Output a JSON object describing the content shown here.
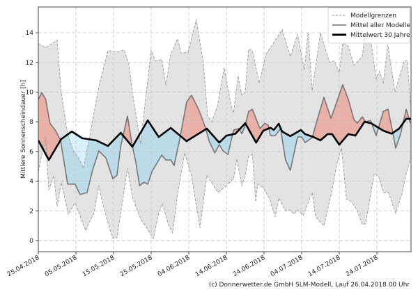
{
  "chart_data": {
    "type": "line",
    "title": "",
    "ylabel": "Mittlere Sonnenscheindauer [h]",
    "xlabel": "",
    "ylim": [
      -0.7,
      15.6
    ],
    "xlim_days": [
      0,
      99.3
    ],
    "grid": true,
    "legend_position": "top-right",
    "yticks": [
      0,
      2,
      4,
      6,
      8,
      10,
      12,
      14
    ],
    "xticks": [
      {
        "day": 0,
        "label": "25.04.2018"
      },
      {
        "day": 10,
        "label": "05.05.2018"
      },
      {
        "day": 20,
        "label": "15.05.2018"
      },
      {
        "day": 30,
        "label": "25.05.2018"
      },
      {
        "day": 40,
        "label": "04.06.2018"
      },
      {
        "day": 50,
        "label": "14.06.2018"
      },
      {
        "day": 60,
        "label": "24.06.2018"
      },
      {
        "day": 70,
        "label": "04.07.2018"
      },
      {
        "day": 80,
        "label": "14.07.2018"
      },
      {
        "day": 90,
        "label": "24.07.2018"
      }
    ],
    "legend": [
      {
        "label": "Modellgrenzen",
        "style": "dashed",
        "color": "#999999"
      },
      {
        "label": "Mittel aller Modelle",
        "style": "solid",
        "color": "#707070"
      },
      {
        "label": "Mittelwert 30 Jahre",
        "style": "solid-bold",
        "color": "#000000"
      }
    ],
    "colors": {
      "band": "#e3e3e3",
      "above": "#e8b0a6",
      "below": "#bcdbe8",
      "upper_below_norm": "#d8f1fb",
      "model_mean": "#707070",
      "bounds": "#9a9a9a",
      "norm": "#000000"
    },
    "series": [
      {
        "name": "Modellgrenzen (oben)",
        "points": [
          [
            0,
            13.25
          ],
          [
            1.9,
            13.0
          ],
          [
            5.0,
            13.5
          ],
          [
            6.1,
            9.97
          ],
          [
            7.8,
            7.17
          ],
          [
            9.3,
            6.04
          ],
          [
            10.7,
            5.57
          ],
          [
            12.0,
            4.87
          ],
          [
            13.3,
            6.51
          ],
          [
            15.2,
            9.18
          ],
          [
            16.3,
            10.6
          ],
          [
            18.5,
            12.8
          ],
          [
            20.9,
            12.7
          ],
          [
            22.8,
            12.85
          ],
          [
            24.1,
            11.85
          ],
          [
            25.0,
            9.97
          ],
          [
            25.9,
            8.57
          ],
          [
            27.2,
            6.51
          ],
          [
            28.3,
            9.04
          ],
          [
            30.0,
            12.85
          ],
          [
            31.1,
            12.1
          ],
          [
            32.8,
            12.2
          ],
          [
            33.9,
            10.45
          ],
          [
            35.2,
            12.55
          ],
          [
            37.0,
            13.6
          ],
          [
            38.0,
            12.6
          ],
          [
            39.8,
            12.7
          ],
          [
            42.0,
            14.9
          ],
          [
            43.9,
            11.9
          ],
          [
            45.0,
            8.38
          ],
          [
            46.1,
            8.0
          ],
          [
            47.6,
            9.04
          ],
          [
            49.4,
            11.66
          ],
          [
            51.1,
            9.3
          ],
          [
            51.9,
            8.6
          ],
          [
            53.1,
            11.1
          ],
          [
            54.1,
            9.8
          ],
          [
            55.0,
            10.0
          ],
          [
            55.9,
            12.9
          ],
          [
            56.9,
            12.8
          ],
          [
            58.7,
            10.6
          ],
          [
            60.6,
            12.6
          ],
          [
            62.0,
            13.1
          ],
          [
            64.8,
            14.2
          ],
          [
            67.0,
            12.4
          ],
          [
            68.9,
            13.9
          ],
          [
            70.7,
            11.5
          ],
          [
            71.7,
            14.0
          ],
          [
            72.8,
            10.1
          ],
          [
            75.0,
            14.0
          ],
          [
            77.4,
            12.0
          ],
          [
            78.7,
            12.1
          ],
          [
            80.0,
            11.3
          ],
          [
            80.9,
            13.3
          ],
          [
            82.4,
            13.1
          ],
          [
            83.9,
            11.8
          ],
          [
            86.1,
            12.4
          ],
          [
            87.0,
            14.0
          ],
          [
            88.5,
            13.3
          ],
          [
            89.8,
            10.9
          ],
          [
            90.7,
            11.4
          ],
          [
            91.7,
            10.6
          ],
          [
            92.9,
            13.2
          ],
          [
            94.8,
            10.0
          ],
          [
            97.2,
            12.1
          ],
          [
            98.1,
            12.1
          ],
          [
            98.9,
            9.3
          ]
        ]
      },
      {
        "name": "Modellgrenzen (unten)",
        "points": [
          [
            0,
            4.64
          ],
          [
            1.9,
            6.98
          ],
          [
            2.8,
            3.42
          ],
          [
            4.1,
            4.36
          ],
          [
            5.0,
            2.3
          ],
          [
            6.1,
            3.9
          ],
          [
            7.98,
            1.78
          ],
          [
            9.8,
            2.53
          ],
          [
            12.6,
            0.66
          ],
          [
            13.5,
            1.22
          ],
          [
            14.8,
            1.83
          ],
          [
            16.1,
            3.7
          ],
          [
            17.2,
            2.39
          ],
          [
            18.5,
            1.22
          ],
          [
            19.8,
            0.14
          ],
          [
            20.9,
            0.19
          ],
          [
            23.7,
            4.87
          ],
          [
            25.0,
            2.95
          ],
          [
            25.9,
            2.3
          ],
          [
            27.2,
            1.45
          ],
          [
            28.7,
            0.89
          ],
          [
            30.6,
            0.14
          ],
          [
            32.0,
            1.83
          ],
          [
            32.96,
            2.48
          ],
          [
            34.6,
            1.08
          ],
          [
            35.7,
            0.52
          ],
          [
            37.0,
            3.09
          ],
          [
            38.9,
            5.9
          ],
          [
            40.7,
            4.36
          ],
          [
            42.96,
            0.84
          ],
          [
            44.8,
            4.4
          ],
          [
            47.8,
            3.23
          ],
          [
            50.0,
            3.7
          ],
          [
            51.9,
            4.17
          ],
          [
            52.8,
            5.5
          ],
          [
            54.1,
            3.7
          ],
          [
            55.0,
            4.36
          ],
          [
            55.9,
            5.67
          ],
          [
            56.9,
            5.8
          ],
          [
            57.8,
            2.6
          ],
          [
            58.3,
            3.8
          ],
          [
            59.8,
            3.56
          ],
          [
            61.5,
            2.78
          ],
          [
            62.96,
            1.6
          ],
          [
            63.9,
            2.86
          ],
          [
            65.7,
            2.0
          ],
          [
            67.0,
            2.06
          ],
          [
            67.96,
            1.78
          ],
          [
            68.9,
            2.06
          ],
          [
            70.4,
            1.69
          ],
          [
            72.8,
            3.23
          ],
          [
            73.7,
            1.6
          ],
          [
            75.9,
            0.98
          ],
          [
            78.1,
            3.42
          ],
          [
            79.3,
            5.1
          ],
          [
            80.6,
            6.23
          ],
          [
            81.9,
            2.78
          ],
          [
            83.3,
            2.62
          ],
          [
            84.8,
            2.0
          ],
          [
            86.1,
            1.08
          ],
          [
            87.0,
            1.12
          ],
          [
            89.3,
            4.5
          ],
          [
            90.4,
            4.36
          ],
          [
            91.7,
            3.23
          ],
          [
            93.1,
            3.23
          ],
          [
            95.0,
            1.83
          ],
          [
            96.7,
            3.18
          ],
          [
            97.8,
            4.5
          ],
          [
            98.9,
            5.5
          ]
        ]
      },
      {
        "name": "Mittel aller Modelle",
        "points": [
          [
            0,
            9.5
          ],
          [
            0.9,
            9.97
          ],
          [
            1.9,
            9.55
          ],
          [
            3.1,
            7.9
          ],
          [
            4.6,
            7.4
          ],
          [
            5.9,
            6.75
          ],
          [
            7.8,
            3.8
          ],
          [
            9.8,
            3.8
          ],
          [
            11.1,
            3.1
          ],
          [
            12.96,
            3.23
          ],
          [
            14.4,
            4.73
          ],
          [
            16.1,
            6.04
          ],
          [
            17.96,
            5.57
          ],
          [
            19.8,
            4.17
          ],
          [
            20.9,
            4.4
          ],
          [
            21.9,
            6.37
          ],
          [
            23.7,
            8.38
          ],
          [
            25.0,
            6.37
          ],
          [
            25.9,
            5.29
          ],
          [
            26.9,
            3.7
          ],
          [
            28.1,
            3.93
          ],
          [
            29.1,
            3.8
          ],
          [
            30.2,
            4.64
          ],
          [
            32.8,
            5.76
          ],
          [
            33.9,
            5.43
          ],
          [
            35.2,
            5.43
          ],
          [
            36.1,
            5.06
          ],
          [
            37.6,
            6.84
          ],
          [
            39.4,
            9.32
          ],
          [
            40.7,
            9.79
          ],
          [
            42.6,
            8.85
          ],
          [
            44.4,
            7.63
          ],
          [
            45.4,
            6.7
          ],
          [
            46.9,
            5.9
          ],
          [
            48.1,
            6.46
          ],
          [
            49.1,
            6.04
          ],
          [
            50.4,
            5.8
          ],
          [
            51.9,
            7.45
          ],
          [
            53.3,
            7.54
          ],
          [
            54.1,
            7.2
          ],
          [
            55.0,
            7.77
          ],
          [
            55.9,
            8.7
          ],
          [
            56.9,
            8.85
          ],
          [
            58.9,
            7.54
          ],
          [
            60.2,
            7.9
          ],
          [
            61.1,
            7.77
          ],
          [
            61.7,
            7.07
          ],
          [
            62.96,
            7.07
          ],
          [
            64.4,
            7.54
          ],
          [
            65.7,
            5.43
          ],
          [
            67.0,
            4.73
          ],
          [
            68.9,
            6.98
          ],
          [
            70.0,
            6.98
          ],
          [
            70.9,
            6.6
          ],
          [
            72.8,
            6.93
          ],
          [
            74.1,
            8.1
          ],
          [
            75.9,
            9.65
          ],
          [
            77.8,
            8.24
          ],
          [
            79.3,
            9.32
          ],
          [
            80.9,
            10.5
          ],
          [
            82.4,
            9.5
          ],
          [
            83.9,
            8.15
          ],
          [
            84.8,
            7.9
          ],
          [
            86.1,
            8.34
          ],
          [
            87.0,
            8.0
          ],
          [
            88.3,
            8.1
          ],
          [
            89.8,
            7.07
          ],
          [
            91.7,
            8.7
          ],
          [
            92.96,
            8.85
          ],
          [
            94.1,
            7.45
          ],
          [
            95.0,
            6.23
          ],
          [
            96.3,
            7.17
          ],
          [
            97.8,
            8.85
          ],
          [
            98.9,
            7.9
          ]
        ]
      },
      {
        "name": "Mittelwert 30 Jahre",
        "points": [
          [
            0,
            6.75
          ],
          [
            2.8,
            5.43
          ],
          [
            6.1,
            6.84
          ],
          [
            8.9,
            7.35
          ],
          [
            11.7,
            6.89
          ],
          [
            15.4,
            6.75
          ],
          [
            18.5,
            6.37
          ],
          [
            21.9,
            7.26
          ],
          [
            25.0,
            6.32
          ],
          [
            29.1,
            8.1
          ],
          [
            32.0,
            6.98
          ],
          [
            35.2,
            7.59
          ],
          [
            39.4,
            6.7
          ],
          [
            44.8,
            7.54
          ],
          [
            48.1,
            6.6
          ],
          [
            50.0,
            7.07
          ],
          [
            52.4,
            7.2
          ],
          [
            55.0,
            7.9
          ],
          [
            57.9,
            6.6
          ],
          [
            59.8,
            7.4
          ],
          [
            61.7,
            7.6
          ],
          [
            62.6,
            7.45
          ],
          [
            63.9,
            7.87
          ],
          [
            64.8,
            7.35
          ],
          [
            67.0,
            7.03
          ],
          [
            69.8,
            7.45
          ],
          [
            70.9,
            7.17
          ],
          [
            73.1,
            6.98
          ],
          [
            75.0,
            6.75
          ],
          [
            76.9,
            7.17
          ],
          [
            78.1,
            7.17
          ],
          [
            80.0,
            6.46
          ],
          [
            82.4,
            7.17
          ],
          [
            84.3,
            7.07
          ],
          [
            86.7,
            8.0
          ],
          [
            88.5,
            7.9
          ],
          [
            91.7,
            7.4
          ],
          [
            93.9,
            7.2
          ],
          [
            95.9,
            7.54
          ],
          [
            97.8,
            8.2
          ],
          [
            99.1,
            8.2
          ]
        ]
      }
    ]
  },
  "footer": {
    "credit": "(c) Donnerwetter.de GmbH SLM-Modell, Lauf 26.04.2018 00 Uhr"
  }
}
